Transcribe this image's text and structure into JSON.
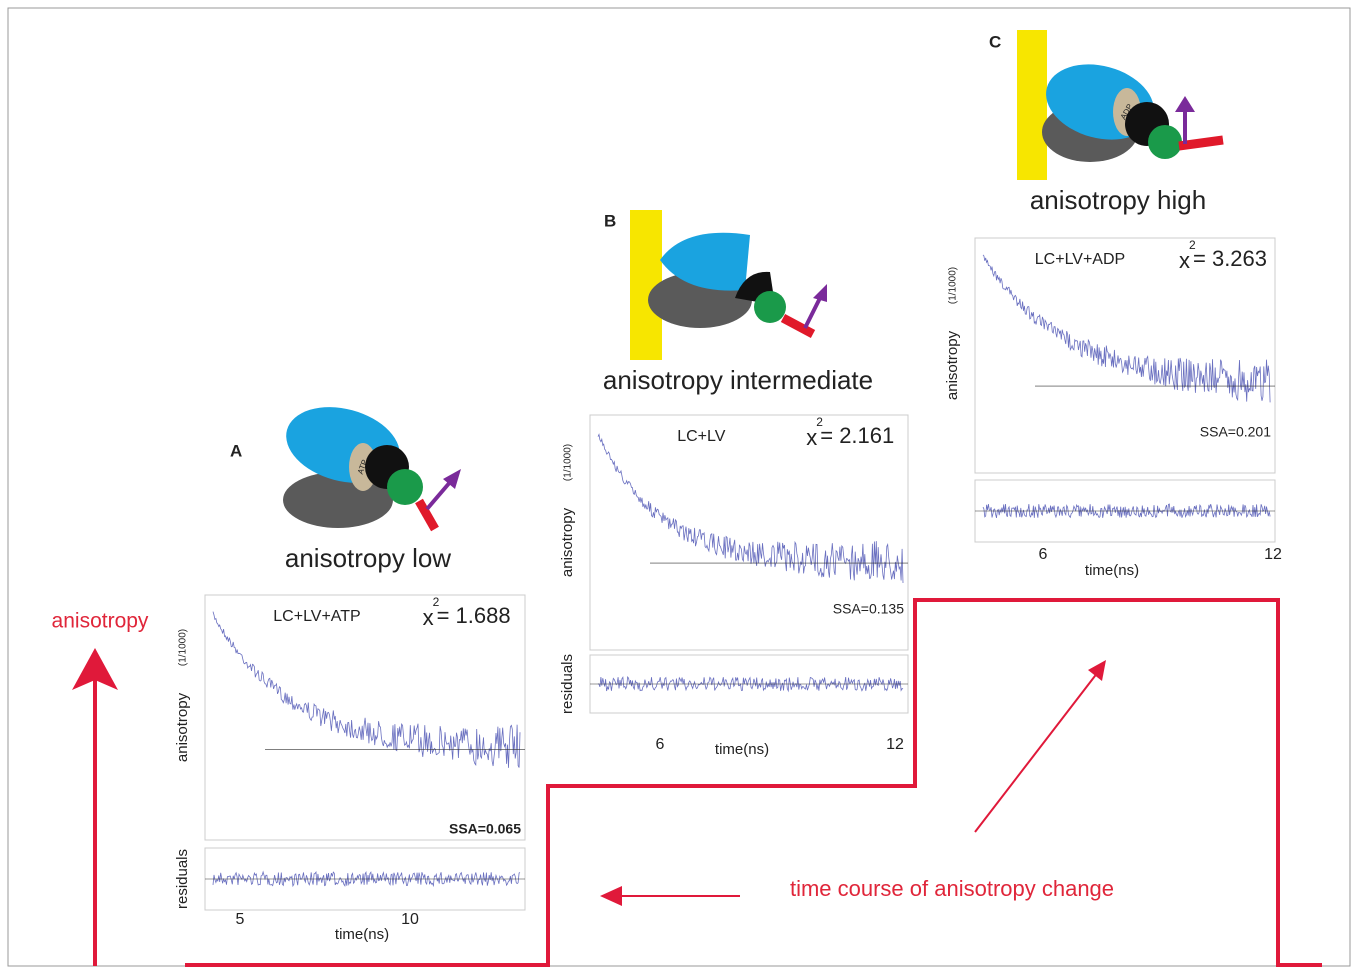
{
  "axis_label": "anisotropy",
  "time_course_label": "time course of anisotropy change",
  "panels": [
    {
      "letter": "A",
      "caption": "anisotropy low",
      "sample": "LC+LV+ATP",
      "chi_symbol": "x",
      "chi_exp": "2",
      "chi_value": "= 1.688",
      "ssa": "SSA=0.065",
      "ylabel": "anisotropy",
      "yunit": "(1/1000)",
      "residuals": "residuals",
      "xlabel": "time(ns)",
      "xticks": [
        5,
        10
      ],
      "nucleotide": "ATP"
    },
    {
      "letter": "B",
      "caption": "anisotropy intermediate",
      "sample": "LC+LV",
      "chi_symbol": "x",
      "chi_exp": "2",
      "chi_value": "= 2.161",
      "ssa": "SSA=0.135",
      "ylabel": "anisotropy",
      "yunit": "(1/1000)",
      "residuals": "residuals",
      "xlabel": "time(ns)",
      "xticks": [
        6,
        12
      ]
    },
    {
      "letter": "C",
      "caption": "anisotropy high",
      "sample": "LC+LV+ADP",
      "chi_symbol": "x",
      "chi_exp": "2",
      "chi_value": "= 3.263",
      "ssa": "SSA=0.201",
      "ylabel": "anisotropy",
      "yunit": "(1/1000)",
      "xlabel": "time(ns)",
      "xticks": [
        6,
        12
      ],
      "nucleotide": "ADP"
    }
  ]
}
